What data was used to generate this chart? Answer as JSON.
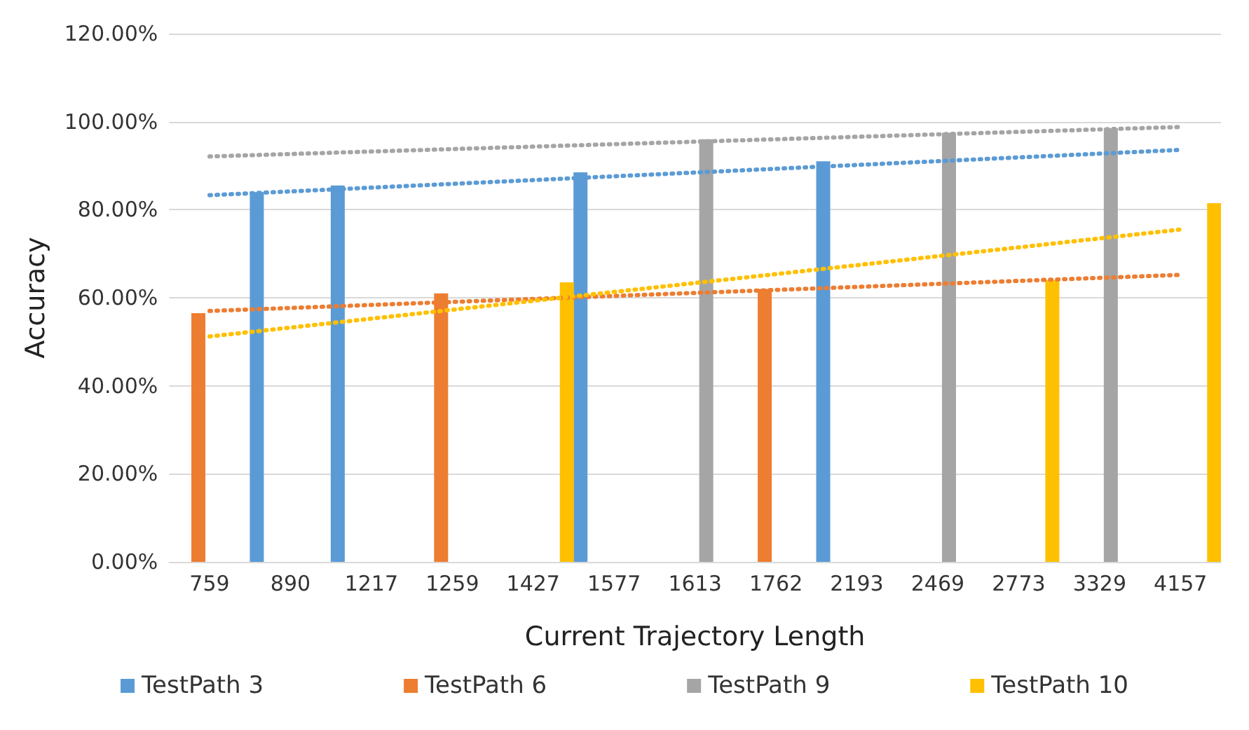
{
  "chart_data": {
    "type": "bar",
    "xlabel": "Current Trajectory Length",
    "ylabel": "Accuracy",
    "categories": [
      "759",
      "890",
      "1217",
      "1259",
      "1427",
      "1577",
      "1613",
      "1762",
      "2193",
      "2469",
      "2773",
      "3329",
      "4157"
    ],
    "series": [
      {
        "name": "TestPath 3",
        "color": "#5b9bd5",
        "values": [
          null,
          84,
          85.5,
          null,
          null,
          88.5,
          null,
          null,
          91,
          null,
          null,
          null,
          null
        ]
      },
      {
        "name": "TestPath 6",
        "color": "#ed7d31",
        "values": [
          56.5,
          null,
          null,
          61,
          null,
          null,
          null,
          62,
          null,
          null,
          null,
          null,
          null
        ]
      },
      {
        "name": "TestPath 9",
        "color": "#a5a5a5",
        "values": [
          null,
          null,
          null,
          null,
          null,
          null,
          96,
          null,
          null,
          97.5,
          null,
          98.5,
          null
        ]
      },
      {
        "name": "TestPath 10",
        "color": "#ffc000",
        "values": [
          null,
          null,
          null,
          null,
          63.5,
          null,
          null,
          null,
          null,
          null,
          64,
          null,
          81.5
        ]
      },
      {
        "type": "line",
        "color": "#5b9bd5",
        "line_style": "dotted",
        "marker": "none",
        "values": [
          83.3,
          null,
          null,
          null,
          null,
          null,
          null,
          null,
          null,
          null,
          null,
          null,
          93.6
        ]
      },
      {
        "type": "line",
        "color": "#ed7d31",
        "line_style": "dotted",
        "marker": "none",
        "values": [
          57,
          null,
          null,
          null,
          null,
          null,
          null,
          null,
          null,
          null,
          null,
          null,
          65.2
        ]
      },
      {
        "type": "line",
        "color": "#a5a5a5",
        "line_style": "dotted",
        "marker": "none",
        "values": [
          92.1,
          null,
          null,
          null,
          null,
          null,
          null,
          null,
          null,
          null,
          null,
          null,
          98.8
        ]
      },
      {
        "type": "line",
        "color": "#ffc000",
        "line_style": "dotted",
        "marker": "none",
        "values": [
          51.2,
          null,
          null,
          null,
          null,
          null,
          null,
          null,
          null,
          null,
          null,
          null,
          75.5
        ]
      }
    ],
    "ylim": [
      0,
      120
    ],
    "yticks": [
      {
        "value": 0,
        "label": "0.00%"
      },
      {
        "value": 20,
        "label": "20.00%"
      },
      {
        "value": 40,
        "label": "40.00%"
      },
      {
        "value": 60,
        "label": "60.00%"
      },
      {
        "value": 80,
        "label": "80.00%"
      },
      {
        "value": 100,
        "label": "100.00%"
      },
      {
        "value": 120,
        "label": "120.00%"
      }
    ],
    "grid": "y",
    "legend": "bottom"
  }
}
